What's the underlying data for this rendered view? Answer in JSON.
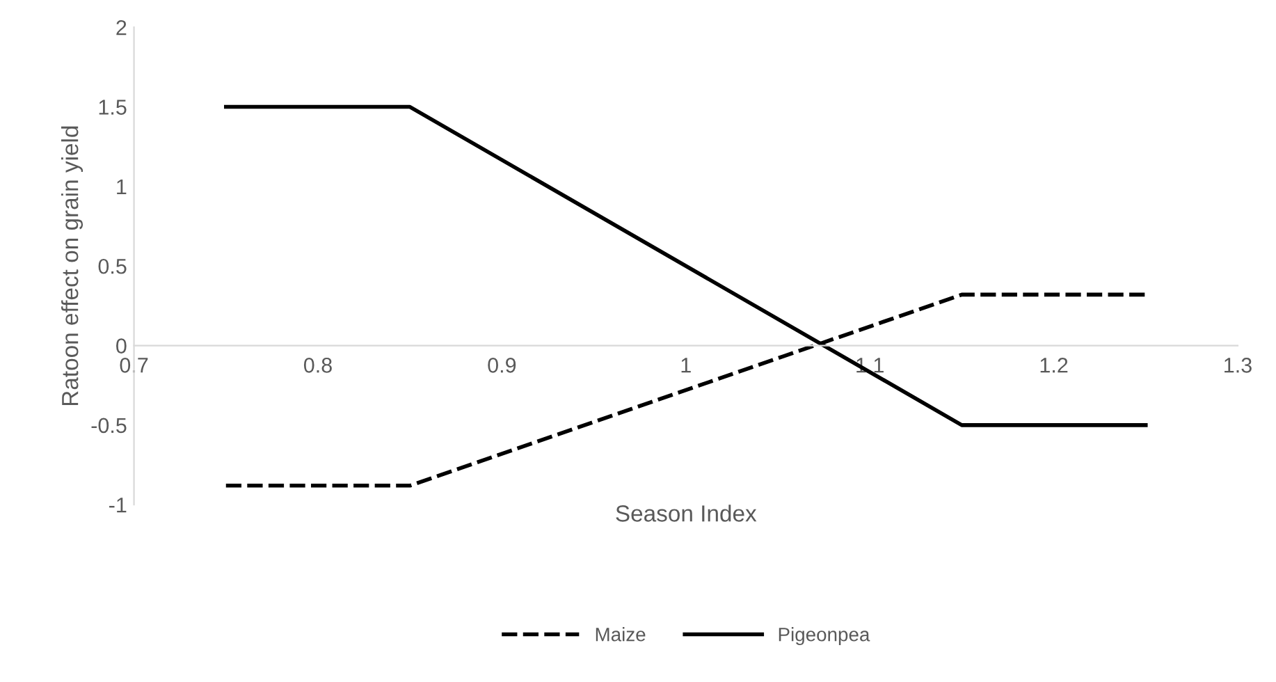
{
  "chart_data": {
    "type": "line",
    "xlabel": "Season Index",
    "ylabel": "Ratoon effect on grain yield",
    "xlim": [
      0.7,
      1.3
    ],
    "xticks": [
      0.7,
      0.8,
      0.9,
      1,
      1.1,
      1.2,
      1.3
    ],
    "ylim": [
      -1,
      2
    ],
    "yticks": [
      -1,
      -0.5,
      0,
      0.5,
      1,
      1.5,
      2
    ],
    "grid": false,
    "legend": "bottom",
    "marker": "none",
    "series": [
      {
        "name": "Maize",
        "color": "#000000",
        "line_style": "dashed",
        "x": [
          0.75,
          0.85,
          1.15,
          1.25
        ],
        "values": [
          -0.88,
          -0.88,
          0.32,
          0.32
        ]
      },
      {
        "name": "Pigeonpea",
        "color": "#000000",
        "line_style": "solid",
        "x": [
          0.75,
          0.85,
          1.15,
          1.25
        ],
        "values": [
          1.5,
          1.5,
          -0.5,
          -0.5
        ]
      }
    ]
  }
}
